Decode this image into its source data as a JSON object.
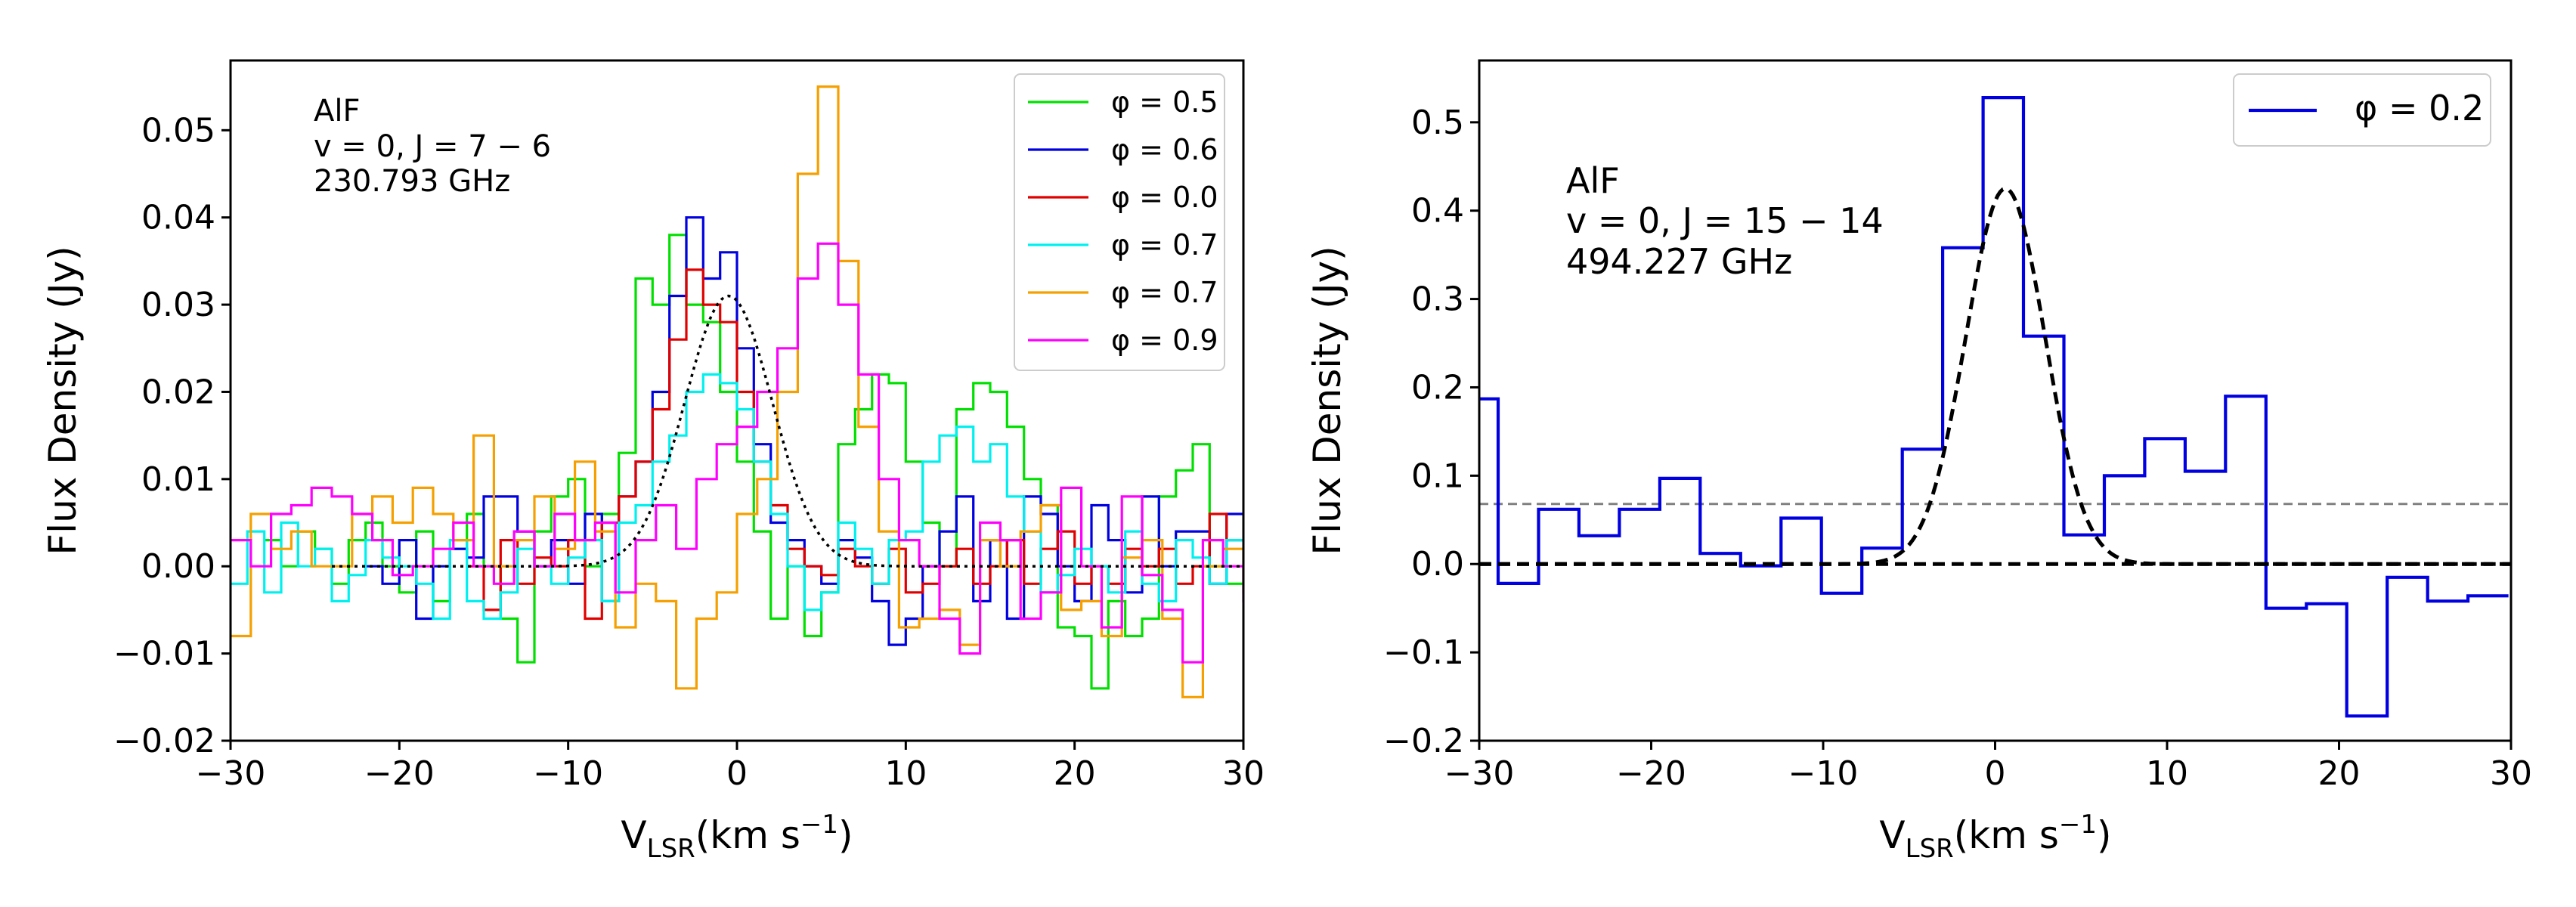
{
  "figure": {
    "background": "#ffffff"
  },
  "chart_data": [
    {
      "type": "line",
      "panel": "left",
      "title": "",
      "xlabel": "V",
      "xlabel_sub": "LSR",
      "xlabel_unit": "(km s",
      "xlabel_sup": "−1",
      "xlabel_close": ")",
      "ylabel": "Flux Density (Jy)",
      "xlim": [
        -30,
        30
      ],
      "ylim": [
        -0.02,
        0.058
      ],
      "xticks": [
        -30,
        -20,
        -10,
        0,
        10,
        20,
        30
      ],
      "xtick_labels": [
        "−30",
        "−20",
        "−10",
        "0",
        "10",
        "20",
        "30"
      ],
      "yticks": [
        -0.02,
        -0.01,
        0.0,
        0.01,
        0.02,
        0.03,
        0.04,
        0.05
      ],
      "ytick_labels": [
        "−0.02",
        "−0.01",
        "0.00",
        "0.01",
        "0.02",
        "0.03",
        "0.04",
        "0.05"
      ],
      "annotation": [
        "AlF",
        "v = 0, J = 7 − 6",
        "230.793 GHz"
      ],
      "legend_position": "top-right",
      "fit": {
        "style": "dotted",
        "color": "#000000",
        "amplitude": 0.031,
        "center": -0.5,
        "sigma": 2.6,
        "x_range": [
          -24,
          30
        ]
      },
      "series": [
        {
          "name": "φ = 0.5",
          "color": "#00e000",
          "x_start": -28,
          "step": 1.0,
          "values": [
            0.003,
            0.0,
            0.004,
            0.002,
            -0.002,
            0.003,
            0.005,
            0.0,
            -0.003,
            0.004,
            -0.004,
            0.002,
            0.006,
            0.0,
            -0.006,
            -0.011,
            0.004,
            0.008,
            0.01,
            0.0,
            0.006,
            0.013,
            0.033,
            0.03,
            0.038,
            0.03,
            0.028,
            0.02,
            0.012,
            0.004,
            -0.006,
            0.0,
            -0.008,
            -0.003,
            0.014,
            0.018,
            0.022,
            0.021,
            0.012,
            0.005,
            0.0,
            0.018,
            0.021,
            0.02,
            0.016,
            0.01,
            0.007,
            -0.007,
            -0.008,
            -0.014,
            -0.004,
            -0.008,
            -0.006,
            0.008,
            0.011,
            0.014,
            0.0,
            -0.002
          ]
        },
        {
          "name": "φ = 0.6",
          "color": "#0000e0",
          "x_start": -22,
          "step": 1.0,
          "values": [
            0.0,
            -0.002,
            0.003,
            -0.006,
            0.0,
            0.002,
            0.001,
            0.008,
            0.008,
            0.004,
            0.0,
            0.003,
            -0.002,
            0.006,
            -0.004,
            0.008,
            0.012,
            0.02,
            0.031,
            0.04,
            0.033,
            0.036,
            0.025,
            0.014,
            0.005,
            0.003,
            0.0,
            -0.002,
            0.003,
            0.001,
            -0.004,
            -0.009,
            -0.006,
            0.0,
            0.004,
            0.008,
            -0.004,
            0.003,
            -0.006,
            0.008,
            0.006,
            0.0,
            -0.004,
            0.007,
            0.003,
            -0.003,
            0.008,
            0.0,
            0.004,
            0.004,
            -0.002,
            0.006
          ]
        },
        {
          "name": "φ = 0.0",
          "color": "#e00000",
          "x_start": -16,
          "step": 1.0,
          "values": [
            0.0,
            -0.005,
            0.003,
            -0.002,
            0.001,
            0.0,
            0.003,
            -0.006,
            0.005,
            0.008,
            0.012,
            0.018,
            0.026,
            0.034,
            0.03,
            0.028,
            0.02,
            0.012,
            0.007,
            0.002,
            0.0,
            -0.001,
            0.002,
            0.0,
            -0.002,
            0.002,
            -0.003,
            -0.002,
            0.0,
            0.002,
            -0.002,
            0.0,
            0.003,
            -0.002,
            0.002,
            0.004,
            -0.002,
            0.0,
            -0.002,
            0.002,
            0.0,
            0.002,
            -0.002,
            0.0,
            0.006,
            0.003
          ]
        },
        {
          "name": "φ = 0.7",
          "color": "#00f0f0",
          "x_start": -30,
          "step": 1.0,
          "values": [
            -0.002,
            0.004,
            -0.003,
            0.005,
            0.0,
            0.002,
            -0.004,
            -0.001,
            0.003,
            0.001,
            0.0,
            -0.002,
            -0.006,
            0.003,
            -0.004,
            -0.006,
            -0.003,
            0.002,
            0.0,
            -0.002,
            0.001,
            0.003,
            -0.004,
            0.005,
            0.007,
            0.012,
            0.015,
            0.02,
            0.022,
            0.021,
            0.018,
            0.012,
            0.006,
            0.0,
            -0.005,
            -0.003,
            0.005,
            0.002,
            -0.002,
            0.003,
            0.004,
            0.012,
            0.015,
            0.016,
            0.012,
            0.014,
            0.008,
            0.004,
            -0.003,
            -0.001,
            0.002,
            0.0,
            -0.003,
            0.004,
            -0.002,
            -0.004,
            0.003,
            0.001,
            -0.002,
            0.003
          ]
        },
        {
          "name": "φ = 0.7",
          "color": "#f5a000",
          "x_start": -30,
          "step": 1.2,
          "values": [
            -0.008,
            0.006,
            0.002,
            0.004,
            0.0,
            0.0,
            0.006,
            0.008,
            0.005,
            0.009,
            0.006,
            0.003,
            0.015,
            0.0,
            0.003,
            0.008,
            0.002,
            0.012,
            0.004,
            -0.007,
            -0.002,
            -0.004,
            -0.014,
            -0.006,
            -0.003,
            0.006,
            0.01,
            0.02,
            0.045,
            0.055,
            0.035,
            0.016,
            0.004,
            -0.007,
            -0.006,
            -0.005,
            -0.009,
            0.003,
            0.0,
            0.004,
            0.007,
            -0.005,
            -0.004,
            -0.008,
            0.001,
            0.003,
            -0.006,
            -0.015,
            0.0,
            0.002,
            -0.003,
            0.004,
            -0.007,
            -0.009,
            -0.002,
            0.008
          ]
        },
        {
          "name": "φ = 0.9",
          "color": "#ff00ff",
          "x_start": -30,
          "step": 1.2,
          "values": [
            0.003,
            0.0,
            0.006,
            0.007,
            0.009,
            0.008,
            0.006,
            0.003,
            -0.001,
            0.0,
            0.002,
            0.005,
            0.0,
            -0.002,
            0.004,
            0.0,
            0.006,
            0.003,
            0.005,
            -0.003,
            0.003,
            0.007,
            0.002,
            0.01,
            0.014,
            0.016,
            0.02,
            0.025,
            0.033,
            0.037,
            0.03,
            0.022,
            0.01,
            0.003,
            0.0,
            -0.006,
            -0.01,
            0.005,
            0.003,
            -0.006,
            -0.003,
            0.009,
            0.0,
            -0.007,
            0.008,
            -0.001,
            -0.005,
            -0.011,
            0.003,
            0.0,
            -0.004,
            0.006,
            -0.005,
            0.003,
            -0.003,
            0.002
          ]
        }
      ]
    },
    {
      "type": "line",
      "panel": "right",
      "title": "",
      "xlabel": "V",
      "xlabel_sub": "LSR",
      "xlabel_unit": "(km s",
      "xlabel_sup": "−1",
      "xlabel_close": ")",
      "ylabel": "Flux Density (Jy)",
      "xlim": [
        -30,
        30
      ],
      "ylim": [
        -0.2,
        0.57
      ],
      "xticks": [
        -30,
        -20,
        -10,
        0,
        10,
        20,
        30
      ],
      "xtick_labels": [
        "−30",
        "−20",
        "−10",
        "0",
        "10",
        "20",
        "30"
      ],
      "yticks": [
        -0.2,
        -0.1,
        0.0,
        0.1,
        0.2,
        0.3,
        0.4,
        0.5
      ],
      "ytick_labels": [
        "−0.2",
        "−0.1",
        "0.0",
        "0.1",
        "0.2",
        "0.3",
        "0.4",
        "0.5"
      ],
      "annotation": [
        "AlF",
        "v = 0, J = 15 − 14",
        "494.227 GHz"
      ],
      "legend_position": "top-right",
      "threshold": {
        "value": 0.068,
        "color": "#808080",
        "style": "dashed"
      },
      "zero_line": {
        "value": 0.0,
        "color": "#000000",
        "style": "dashed"
      },
      "fit": {
        "style": "dashed",
        "color": "#000000",
        "amplitude": 0.425,
        "center": 0.6,
        "sigma": 2.3,
        "x_range": [
          -30,
          30
        ]
      },
      "series": [
        {
          "name": "φ = 0.2",
          "color": "#0000e0",
          "x_start": -31.25,
          "step": 2.35,
          "values": [
            0.187,
            -0.022,
            0.062,
            0.032,
            0.062,
            0.097,
            0.012,
            -0.002,
            0.052,
            -0.033,
            0.018,
            0.13,
            0.358,
            0.528,
            0.258,
            0.033,
            0.1,
            0.142,
            0.105,
            0.19,
            -0.05,
            -0.045,
            -0.172,
            -0.015,
            -0.042,
            -0.036
          ]
        }
      ]
    }
  ]
}
